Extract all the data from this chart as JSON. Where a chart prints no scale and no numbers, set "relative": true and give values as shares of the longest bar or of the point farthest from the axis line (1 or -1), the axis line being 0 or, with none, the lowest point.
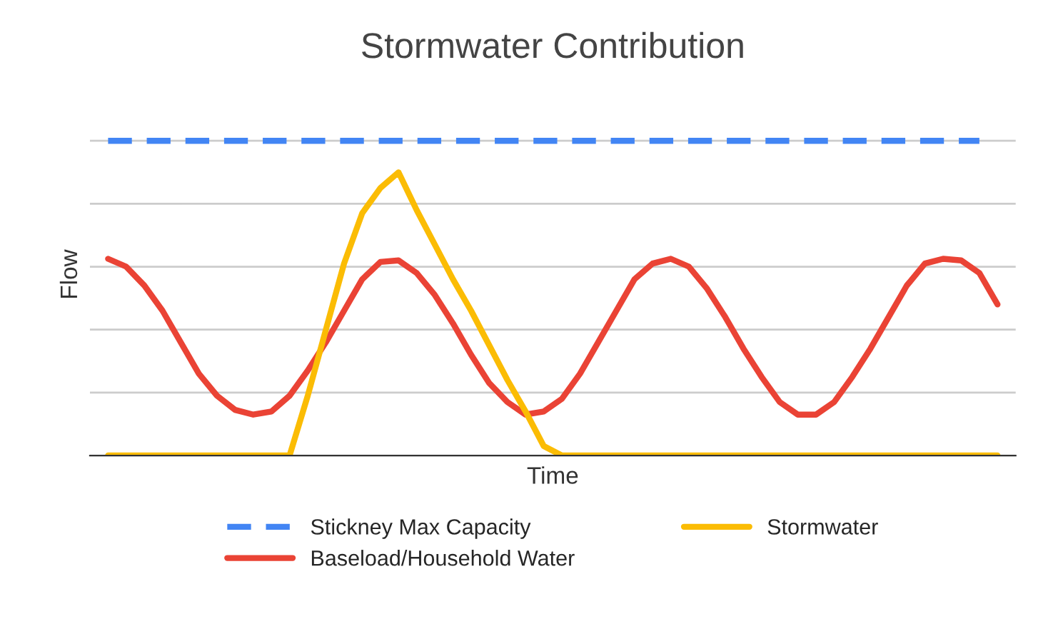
{
  "chart_data": {
    "type": "line",
    "title": "Stormwater Contribution",
    "xlabel": "Time",
    "ylabel": "Flow",
    "relative": true,
    "grid": "y",
    "legend": "bottom",
    "categories": [
      null,
      null,
      null,
      null,
      null,
      null,
      null,
      null,
      null,
      null,
      null,
      null,
      null,
      null,
      null,
      null,
      null,
      null,
      null,
      null,
      null,
      null,
      null,
      null,
      null,
      null,
      null,
      null,
      null,
      null,
      null,
      null,
      null,
      null,
      null,
      null,
      null,
      null,
      null,
      null,
      null,
      null,
      null,
      null,
      null,
      null,
      null,
      null,
      null,
      null
    ],
    "series": [
      {
        "name": "Stickney Max Capacity",
        "color": "#4285f4",
        "line_style": "dashed",
        "values": [
          1,
          1,
          1,
          1,
          1,
          1,
          1,
          1,
          1,
          1,
          1,
          1,
          1,
          1,
          1,
          1,
          1,
          1,
          1,
          1,
          1,
          1,
          1,
          1,
          1,
          1,
          1,
          1,
          1,
          1,
          1,
          1,
          1,
          1,
          1,
          1,
          1,
          1,
          1,
          1,
          1,
          1,
          1,
          1,
          1,
          1,
          1,
          1,
          1,
          null
        ]
      },
      {
        "name": "Baseload/Household Water",
        "color": "#ea4335",
        "line_style": "solid",
        "values": [
          0.625,
          0.6,
          0.54,
          0.46,
          0.36,
          0.26,
          0.19,
          0.145,
          0.13,
          0.14,
          0.19,
          0.27,
          0.36,
          0.46,
          0.56,
          0.615,
          0.62,
          0.58,
          0.51,
          0.42,
          0.32,
          0.23,
          0.17,
          0.13,
          0.14,
          0.18,
          0.26,
          0.36,
          0.46,
          0.56,
          0.61,
          0.625,
          0.6,
          0.53,
          0.44,
          0.34,
          0.25,
          0.17,
          0.13,
          0.13,
          0.17,
          0.25,
          0.34,
          0.44,
          0.54,
          0.61,
          0.625,
          0.62,
          0.58,
          0.48
        ]
      },
      {
        "name": "Stormwater",
        "color": "#fbbc04",
        "line_style": "solid",
        "values": [
          0,
          0,
          0,
          0,
          0,
          0,
          0,
          0,
          0,
          0,
          0,
          0.19,
          0.4,
          0.61,
          0.77,
          0.85,
          0.9,
          0.78,
          0.67,
          0.56,
          0.46,
          0.35,
          0.24,
          0.14,
          0.03,
          0,
          0,
          0,
          0,
          0,
          0,
          0,
          0,
          0,
          0,
          0,
          0,
          0,
          0,
          0,
          0,
          0,
          0,
          0,
          0,
          0,
          0,
          0,
          0,
          0
        ]
      }
    ]
  }
}
